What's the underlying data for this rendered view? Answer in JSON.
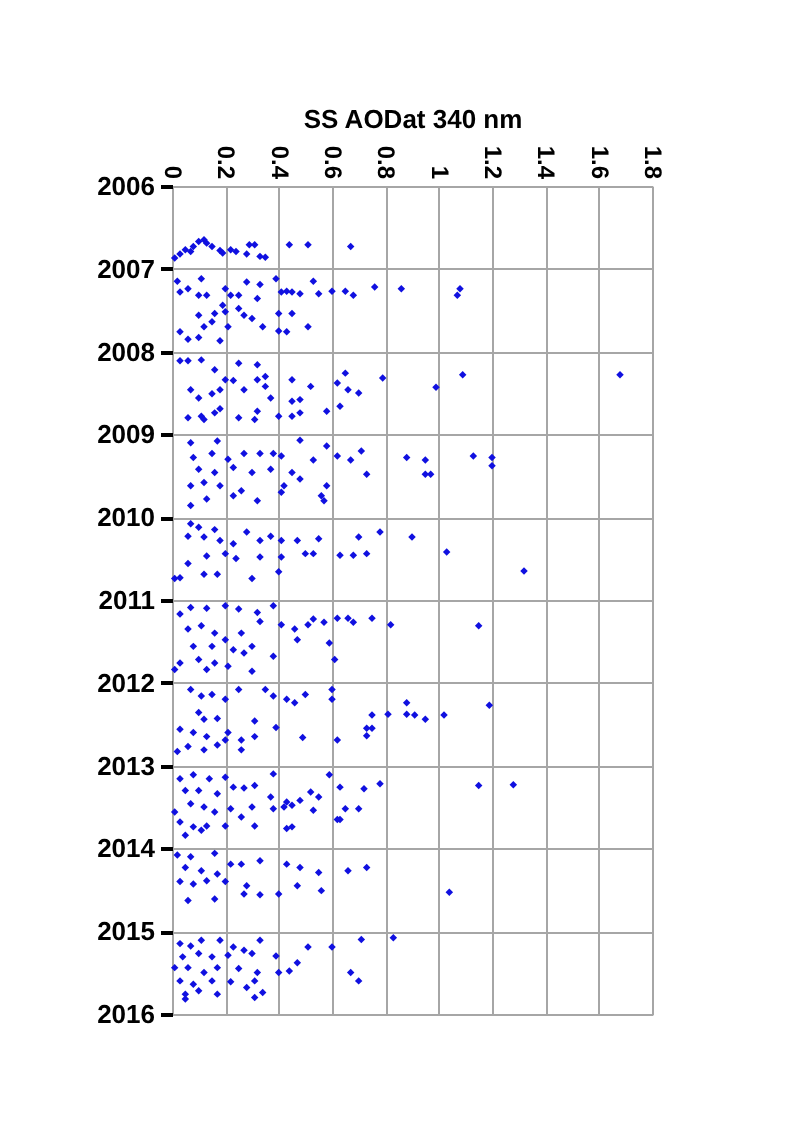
{
  "chart_data": {
    "type": "scatter",
    "xlabel": "SS AODat 340 nm",
    "x": [
      0.01,
      0.03,
      0.05,
      0.07,
      0.08,
      0.1,
      0.12,
      0.13,
      0.15,
      0.18,
      0.19,
      0.22,
      0.24,
      0.28,
      0.29,
      0.31,
      0.33,
      0.35,
      0.44,
      0.51,
      0.67,
      0.02,
      0.03,
      0.06,
      0.11,
      0.1,
      0.13,
      0.2,
      0.22,
      0.25,
      0.28,
      0.33,
      0.32,
      0.39,
      0.41,
      0.43,
      0.45,
      0.48,
      0.53,
      0.55,
      0.6,
      0.65,
      0.68,
      0.76,
      0.86,
      1.07,
      1.08,
      0.1,
      0.16,
      0.2,
      0.25,
      0.27,
      0.4,
      0.45,
      0.34,
      0.4,
      0.43,
      0.51,
      0.03,
      0.06,
      0.1,
      0.18,
      0.12,
      0.21,
      0.3,
      0.15,
      0.19,
      0.03,
      0.06,
      0.11,
      0.25,
      0.32,
      0.16,
      0.2,
      0.23,
      0.32,
      0.35,
      0.45,
      0.65,
      0.62,
      0.66,
      0.7,
      0.79,
      0.99,
      1.09,
      1.68,
      0.07,
      0.1,
      0.15,
      0.18,
      0.27,
      0.35,
      0.37,
      0.45,
      0.48,
      0.52,
      0.63,
      0.58,
      0.06,
      0.11,
      0.16,
      0.12,
      0.25,
      0.31,
      0.32,
      0.4,
      0.45,
      0.48,
      0.18,
      0.07,
      0.17,
      0.48,
      0.08,
      0.15,
      0.21,
      0.27,
      0.33,
      0.38,
      0.41,
      0.53,
      0.58,
      0.62,
      0.67,
      0.71,
      0.88,
      0.95,
      1.13,
      1.2,
      1.2,
      0.73,
      0.95,
      0.97,
      0.1,
      0.16,
      0.23,
      0.3,
      0.37,
      0.45,
      0.07,
      0.12,
      0.18,
      0.26,
      0.42,
      0.48,
      0.56,
      0.57,
      0.58,
      0.07,
      0.13,
      0.32,
      0.23,
      0.41,
      0.07,
      0.1,
      0.16,
      0.06,
      0.12,
      0.18,
      0.23,
      0.28,
      0.33,
      0.37,
      0.41,
      0.47,
      0.55,
      0.7,
      0.78,
      0.9,
      1.03,
      1.32,
      0.5,
      0.53,
      0.63,
      0.68,
      0.73,
      0.03,
      0.01,
      0.06,
      0.12,
      0.17,
      0.3,
      0.4,
      0.24,
      0.33,
      0.41,
      0.2,
      0.13,
      0.03,
      0.07,
      0.13,
      0.2,
      0.25,
      0.32,
      0.38,
      0.33,
      0.41,
      0.46,
      0.51,
      0.53,
      0.57,
      0.62,
      0.66,
      0.68,
      0.75,
      0.82,
      1.15,
      0.59,
      0.47,
      0.06,
      0.11,
      0.16,
      0.2,
      0.08,
      0.15,
      0.26,
      0.3,
      0.38,
      0.61,
      0.03,
      0.1,
      0.16,
      0.21,
      0.01,
      0.13,
      0.3,
      0.27,
      0.23,
      0.07,
      0.11,
      0.15,
      0.2,
      0.25,
      0.35,
      0.38,
      0.43,
      0.46,
      0.5,
      0.6,
      0.6,
      0.88,
      1.19,
      0.75,
      0.81,
      0.88,
      0.91,
      0.95,
      1.02,
      0.73,
      0.75,
      0.73,
      0.49,
      0.62,
      0.39,
      0.31,
      0.1,
      0.12,
      0.17,
      0.03,
      0.08,
      0.13,
      0.21,
      0.26,
      0.31,
      0.02,
      0.06,
      0.12,
      0.17,
      0.26,
      0.2,
      0.03,
      0.08,
      0.14,
      0.2,
      0.38,
      0.59,
      0.63,
      0.72,
      0.78,
      1.15,
      1.28,
      0.05,
      0.1,
      0.17,
      0.23,
      0.27,
      0.31,
      0.37,
      0.43,
      0.48,
      0.52,
      0.55,
      0.65,
      0.7,
      0.07,
      0.12,
      0.16,
      0.22,
      0.3,
      0.38,
      0.42,
      0.45,
      0.53,
      0.01,
      0.03,
      0.08,
      0.13,
      0.2,
      0.26,
      0.31,
      0.43,
      0.45,
      0.62,
      0.63,
      0.05,
      0.11,
      0.02,
      0.07,
      0.16,
      0.22,
      0.26,
      0.33,
      0.43,
      0.48,
      0.55,
      0.66,
      0.73,
      0.05,
      0.11,
      0.17,
      0.03,
      0.08,
      0.13,
      0.2,
      0.28,
      0.47,
      0.56,
      0.4,
      0.33,
      1.04,
      0.06,
      0.16,
      0.27,
      0.03,
      0.07,
      0.11,
      0.18,
      0.23,
      0.27,
      0.33,
      0.39,
      0.51,
      0.6,
      0.71,
      0.83,
      0.04,
      0.1,
      0.15,
      0.21,
      0.3,
      0.01,
      0.06,
      0.12,
      0.17,
      0.25,
      0.32,
      0.4,
      0.44,
      0.47,
      0.67,
      0.7,
      0.03,
      0.08,
      0.15,
      0.22,
      0.28,
      0.31,
      0.05,
      0.1,
      0.17,
      0.31,
      0.34,
      0.05
    ],
    "values": [
      2006.87,
      2006.82,
      2006.77,
      2006.79,
      2006.73,
      2006.67,
      2006.65,
      2006.69,
      2006.73,
      2006.78,
      2006.81,
      2006.77,
      2006.79,
      2006.82,
      2006.71,
      2006.71,
      2006.85,
      2006.86,
      2006.71,
      2006.71,
      2006.73,
      2007.15,
      2007.28,
      2007.24,
      2007.12,
      2007.32,
      2007.32,
      2007.24,
      2007.32,
      2007.32,
      2007.16,
      2007.19,
      2007.36,
      2007.12,
      2007.28,
      2007.27,
      2007.28,
      2007.3,
      2007.15,
      2007.3,
      2007.27,
      2007.27,
      2007.32,
      2007.22,
      2007.24,
      2007.32,
      2007.24,
      2007.56,
      2007.54,
      2007.52,
      2007.48,
      2007.56,
      2007.54,
      2007.54,
      2007.7,
      2007.75,
      2007.76,
      2007.7,
      2007.76,
      2007.85,
      2007.83,
      2007.87,
      2007.7,
      2007.7,
      2007.6,
      2007.64,
      2007.44,
      2008.11,
      2008.11,
      2008.1,
      2008.14,
      2008.16,
      2008.22,
      2008.34,
      2008.35,
      2008.34,
      2008.3,
      2008.34,
      2008.26,
      2008.38,
      2008.46,
      2008.5,
      2008.32,
      2008.43,
      2008.28,
      2008.28,
      2008.46,
      2008.56,
      2008.51,
      2008.46,
      2008.46,
      2008.42,
      2008.56,
      2008.6,
      2008.58,
      2008.42,
      2008.66,
      2008.72,
      2008.8,
      2008.78,
      2008.74,
      2008.82,
      2008.8,
      2008.82,
      2008.72,
      2008.78,
      2008.78,
      2008.74,
      2008.69,
      2009.1,
      2009.08,
      2009.07,
      2009.28,
      2009.23,
      2009.3,
      2009.23,
      2009.23,
      2009.23,
      2009.26,
      2009.31,
      2009.14,
      2009.26,
      2009.31,
      2009.2,
      2009.28,
      2009.31,
      2009.26,
      2009.28,
      2009.38,
      2009.48,
      2009.48,
      2009.48,
      2009.42,
      2009.46,
      2009.4,
      2009.46,
      2009.42,
      2009.46,
      2009.62,
      2009.58,
      2009.62,
      2009.68,
      2009.62,
      2009.54,
      2009.74,
      2009.8,
      2009.62,
      2009.86,
      2009.78,
      2009.8,
      2009.74,
      2009.7,
      2010.08,
      2010.12,
      2010.15,
      2010.23,
      2010.24,
      2010.28,
      2010.32,
      2010.18,
      2010.28,
      2010.23,
      2010.28,
      2010.28,
      2010.26,
      2010.24,
      2010.18,
      2010.24,
      2010.42,
      2010.65,
      2010.44,
      2010.44,
      2010.46,
      2010.46,
      2010.44,
      2010.73,
      2010.74,
      2010.56,
      2010.69,
      2010.69,
      2010.74,
      2010.66,
      2010.5,
      2010.48,
      2010.48,
      2010.44,
      2010.47,
      2011.17,
      2011.09,
      2011.1,
      2011.07,
      2011.11,
      2011.15,
      2011.07,
      2011.26,
      2011.3,
      2011.35,
      2011.3,
      2011.23,
      2011.27,
      2011.22,
      2011.22,
      2011.27,
      2011.22,
      2011.3,
      2011.31,
      2011.52,
      2011.48,
      2011.35,
      2011.31,
      2011.4,
      2011.48,
      2011.56,
      2011.56,
      2011.4,
      2011.56,
      2011.68,
      2011.72,
      2011.76,
      2011.72,
      2011.76,
      2011.8,
      2011.84,
      2011.84,
      2011.86,
      2011.64,
      2011.6,
      2012.08,
      2012.16,
      2012.14,
      2012.2,
      2012.08,
      2012.08,
      2012.16,
      2012.2,
      2012.24,
      2012.14,
      2012.08,
      2012.2,
      2012.24,
      2012.27,
      2012.39,
      2012.38,
      2012.38,
      2012.39,
      2012.44,
      2012.39,
      2012.55,
      2012.55,
      2012.64,
      2012.66,
      2012.69,
      2012.54,
      2012.46,
      2012.36,
      2012.44,
      2012.43,
      2012.56,
      2012.6,
      2012.65,
      2012.6,
      2012.69,
      2012.65,
      2012.83,
      2012.77,
      2012.81,
      2012.75,
      2012.81,
      2012.69,
      2013.16,
      2013.11,
      2013.16,
      2013.14,
      2013.1,
      2013.11,
      2013.26,
      2013.28,
      2013.22,
      2013.24,
      2013.23,
      2013.3,
      2013.3,
      2013.34,
      2013.26,
      2013.27,
      2013.24,
      2013.38,
      2013.44,
      2013.42,
      2013.32,
      2013.38,
      2013.52,
      2013.52,
      2013.46,
      2013.5,
      2013.56,
      2013.52,
      2013.5,
      2013.52,
      2013.5,
      2013.48,
      2013.54,
      2013.56,
      2013.68,
      2013.74,
      2013.73,
      2013.73,
      2013.62,
      2013.73,
      2013.76,
      2013.74,
      2013.65,
      2013.65,
      2013.84,
      2013.78,
      2014.08,
      2014.1,
      2014.06,
      2014.19,
      2014.19,
      2014.15,
      2014.19,
      2014.23,
      2014.29,
      2014.27,
      2014.23,
      2014.23,
      2014.27,
      2014.31,
      2014.4,
      2014.43,
      2014.39,
      2014.4,
      2014.45,
      2014.45,
      2014.51,
      2014.55,
      2014.56,
      2014.53,
      2014.63,
      2014.61,
      2014.55,
      2015.15,
      2015.18,
      2015.11,
      2015.11,
      2015.19,
      2015.23,
      2015.11,
      2015.3,
      2015.19,
      2015.19,
      2015.1,
      2015.08,
      2015.31,
      2015.27,
      2015.31,
      2015.29,
      2015.27,
      2015.44,
      2015.44,
      2015.5,
      2015.44,
      2015.45,
      2015.5,
      2015.5,
      2015.48,
      2015.38,
      2015.5,
      2015.6,
      2015.6,
      2015.64,
      2015.6,
      2015.61,
      2015.68,
      2015.6,
      2015.76,
      2015.72,
      2015.76,
      2015.8,
      2015.74,
      2015.82
    ],
    "color": "#1010e0",
    "xlim": [
      0,
      1.8
    ],
    "xticks": [
      0,
      0.2,
      0.4,
      0.6,
      0.8,
      1,
      1.2,
      1.4,
      1.6,
      1.8
    ],
    "ylim": [
      2016,
      2006
    ],
    "yticks": [
      2006,
      2007,
      2008,
      2009,
      2010,
      2011,
      2012,
      2013,
      2014,
      2015,
      2016
    ],
    "grid": true,
    "marker": "diamond"
  }
}
